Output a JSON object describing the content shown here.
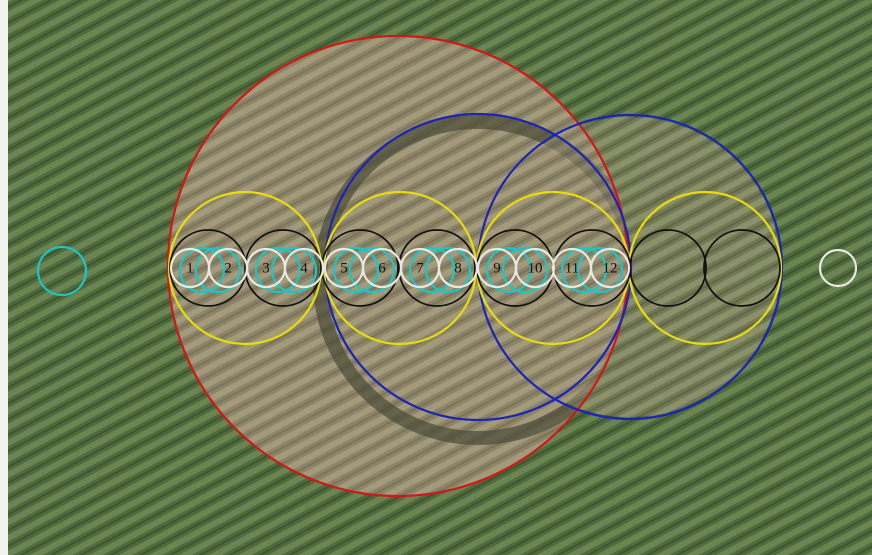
{
  "labels": [
    "1",
    "2",
    "3",
    "4",
    "5",
    "6",
    "7",
    "8",
    "9",
    "10",
    "11",
    "12"
  ]
}
